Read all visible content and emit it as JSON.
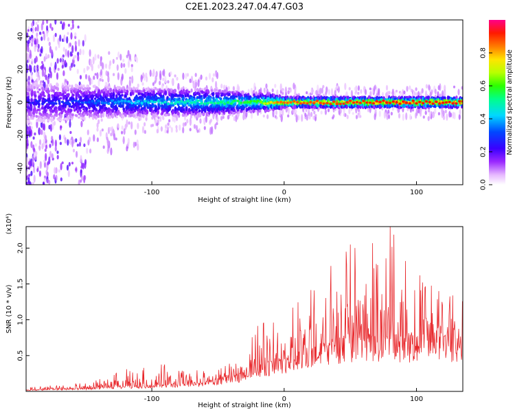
{
  "title": "C2E1.2023.247.04.47.G03",
  "chart_data": [
    {
      "type": "heatmap",
      "xlabel": "Height of straight line (km)",
      "ylabel": "Frequency (Hz)",
      "xlim": [
        -195,
        135
      ],
      "ylim": [
        -50,
        50
      ],
      "x_ticks": [
        -100,
        0,
        100
      ],
      "x_tick_labels": [
        "-100",
        "0",
        "100"
      ],
      "y_ticks": [
        -40,
        -20,
        0,
        20,
        40
      ],
      "y_tick_labels": [
        "-40",
        "-20",
        "0",
        "20",
        "40"
      ],
      "colorbar": {
        "label": "Normalized spectral amplitude",
        "range": [
          0,
          1
        ],
        "ticks": [
          0.0,
          0.2,
          0.4,
          0.6,
          0.8
        ],
        "tick_labels": [
          "0.0",
          "0.2",
          "0.4",
          "0.6",
          "0.8"
        ],
        "colormap": "rainbow (white-violet-blue-cyan-green-yellow-red-magenta)"
      },
      "band_center_hz": 0,
      "band_halfwidth_hz_profile": [
        {
          "x": -195,
          "w": 12
        },
        {
          "x": -150,
          "w": 10
        },
        {
          "x": -100,
          "w": 8
        },
        {
          "x": -60,
          "w": 8
        },
        {
          "x": -30,
          "w": 6
        },
        {
          "x": -12,
          "w": 5
        },
        {
          "x": 0,
          "w": 3
        },
        {
          "x": 60,
          "w": 3
        },
        {
          "x": 135,
          "w": 3
        }
      ],
      "peak_amplitude_profile": [
        {
          "x": -195,
          "a": 0.25
        },
        {
          "x": -150,
          "a": 0.32
        },
        {
          "x": -100,
          "a": 0.45
        },
        {
          "x": -60,
          "a": 0.5
        },
        {
          "x": -20,
          "a": 0.6
        },
        {
          "x": -5,
          "a": 0.85
        },
        {
          "x": 20,
          "a": 0.88
        },
        {
          "x": 80,
          "a": 0.92
        },
        {
          "x": 135,
          "a": 0.92
        }
      ],
      "grid": false
    },
    {
      "type": "line",
      "xlabel": "Height of straight line (km)",
      "ylabel": "SNR (10 * v/v)",
      "y_scale_label": "(x10⁴)",
      "xlim": [
        -195,
        135
      ],
      "ylim": [
        0,
        2.3
      ],
      "x_ticks": [
        -100,
        0,
        100
      ],
      "x_tick_labels": [
        "-100",
        "0",
        "100"
      ],
      "y_ticks": [
        0.5,
        1.0,
        1.5,
        2.0
      ],
      "y_tick_labels": [
        "0.5",
        "1.0",
        "1.5",
        "2.0"
      ],
      "color": "#e8262a",
      "series_envelope": [
        {
          "x": -195,
          "base": 0.02,
          "peak": 0.06
        },
        {
          "x": -150,
          "base": 0.04,
          "peak": 0.12
        },
        {
          "x": -132,
          "base": 0.06,
          "peak": 0.25
        },
        {
          "x": -100,
          "base": 0.08,
          "peak": 0.4
        },
        {
          "x": -60,
          "base": 0.12,
          "peak": 0.3
        },
        {
          "x": -35,
          "base": 0.22,
          "peak": 0.42
        },
        {
          "x": -15,
          "base": 0.35,
          "peak": 1.1
        },
        {
          "x": 0,
          "base": 0.45,
          "peak": 1.05
        },
        {
          "x": 20,
          "base": 0.55,
          "peak": 1.45
        },
        {
          "x": 45,
          "base": 0.7,
          "peak": 1.95
        },
        {
          "x": 80,
          "base": 0.75,
          "peak": 2.3
        },
        {
          "x": 110,
          "base": 0.7,
          "peak": 1.55
        },
        {
          "x": 135,
          "base": 0.7,
          "peak": 1.3
        }
      ],
      "notable_peaks": [
        {
          "x": 80,
          "y": 2.3
        },
        {
          "x": 47,
          "y": 1.95
        },
        {
          "x": 50,
          "y": 2.05
        },
        {
          "x": 70,
          "y": 1.55
        },
        {
          "x": 62,
          "y": 1.5
        },
        {
          "x": 117,
          "y": 1.4
        }
      ],
      "grid": false
    }
  ]
}
